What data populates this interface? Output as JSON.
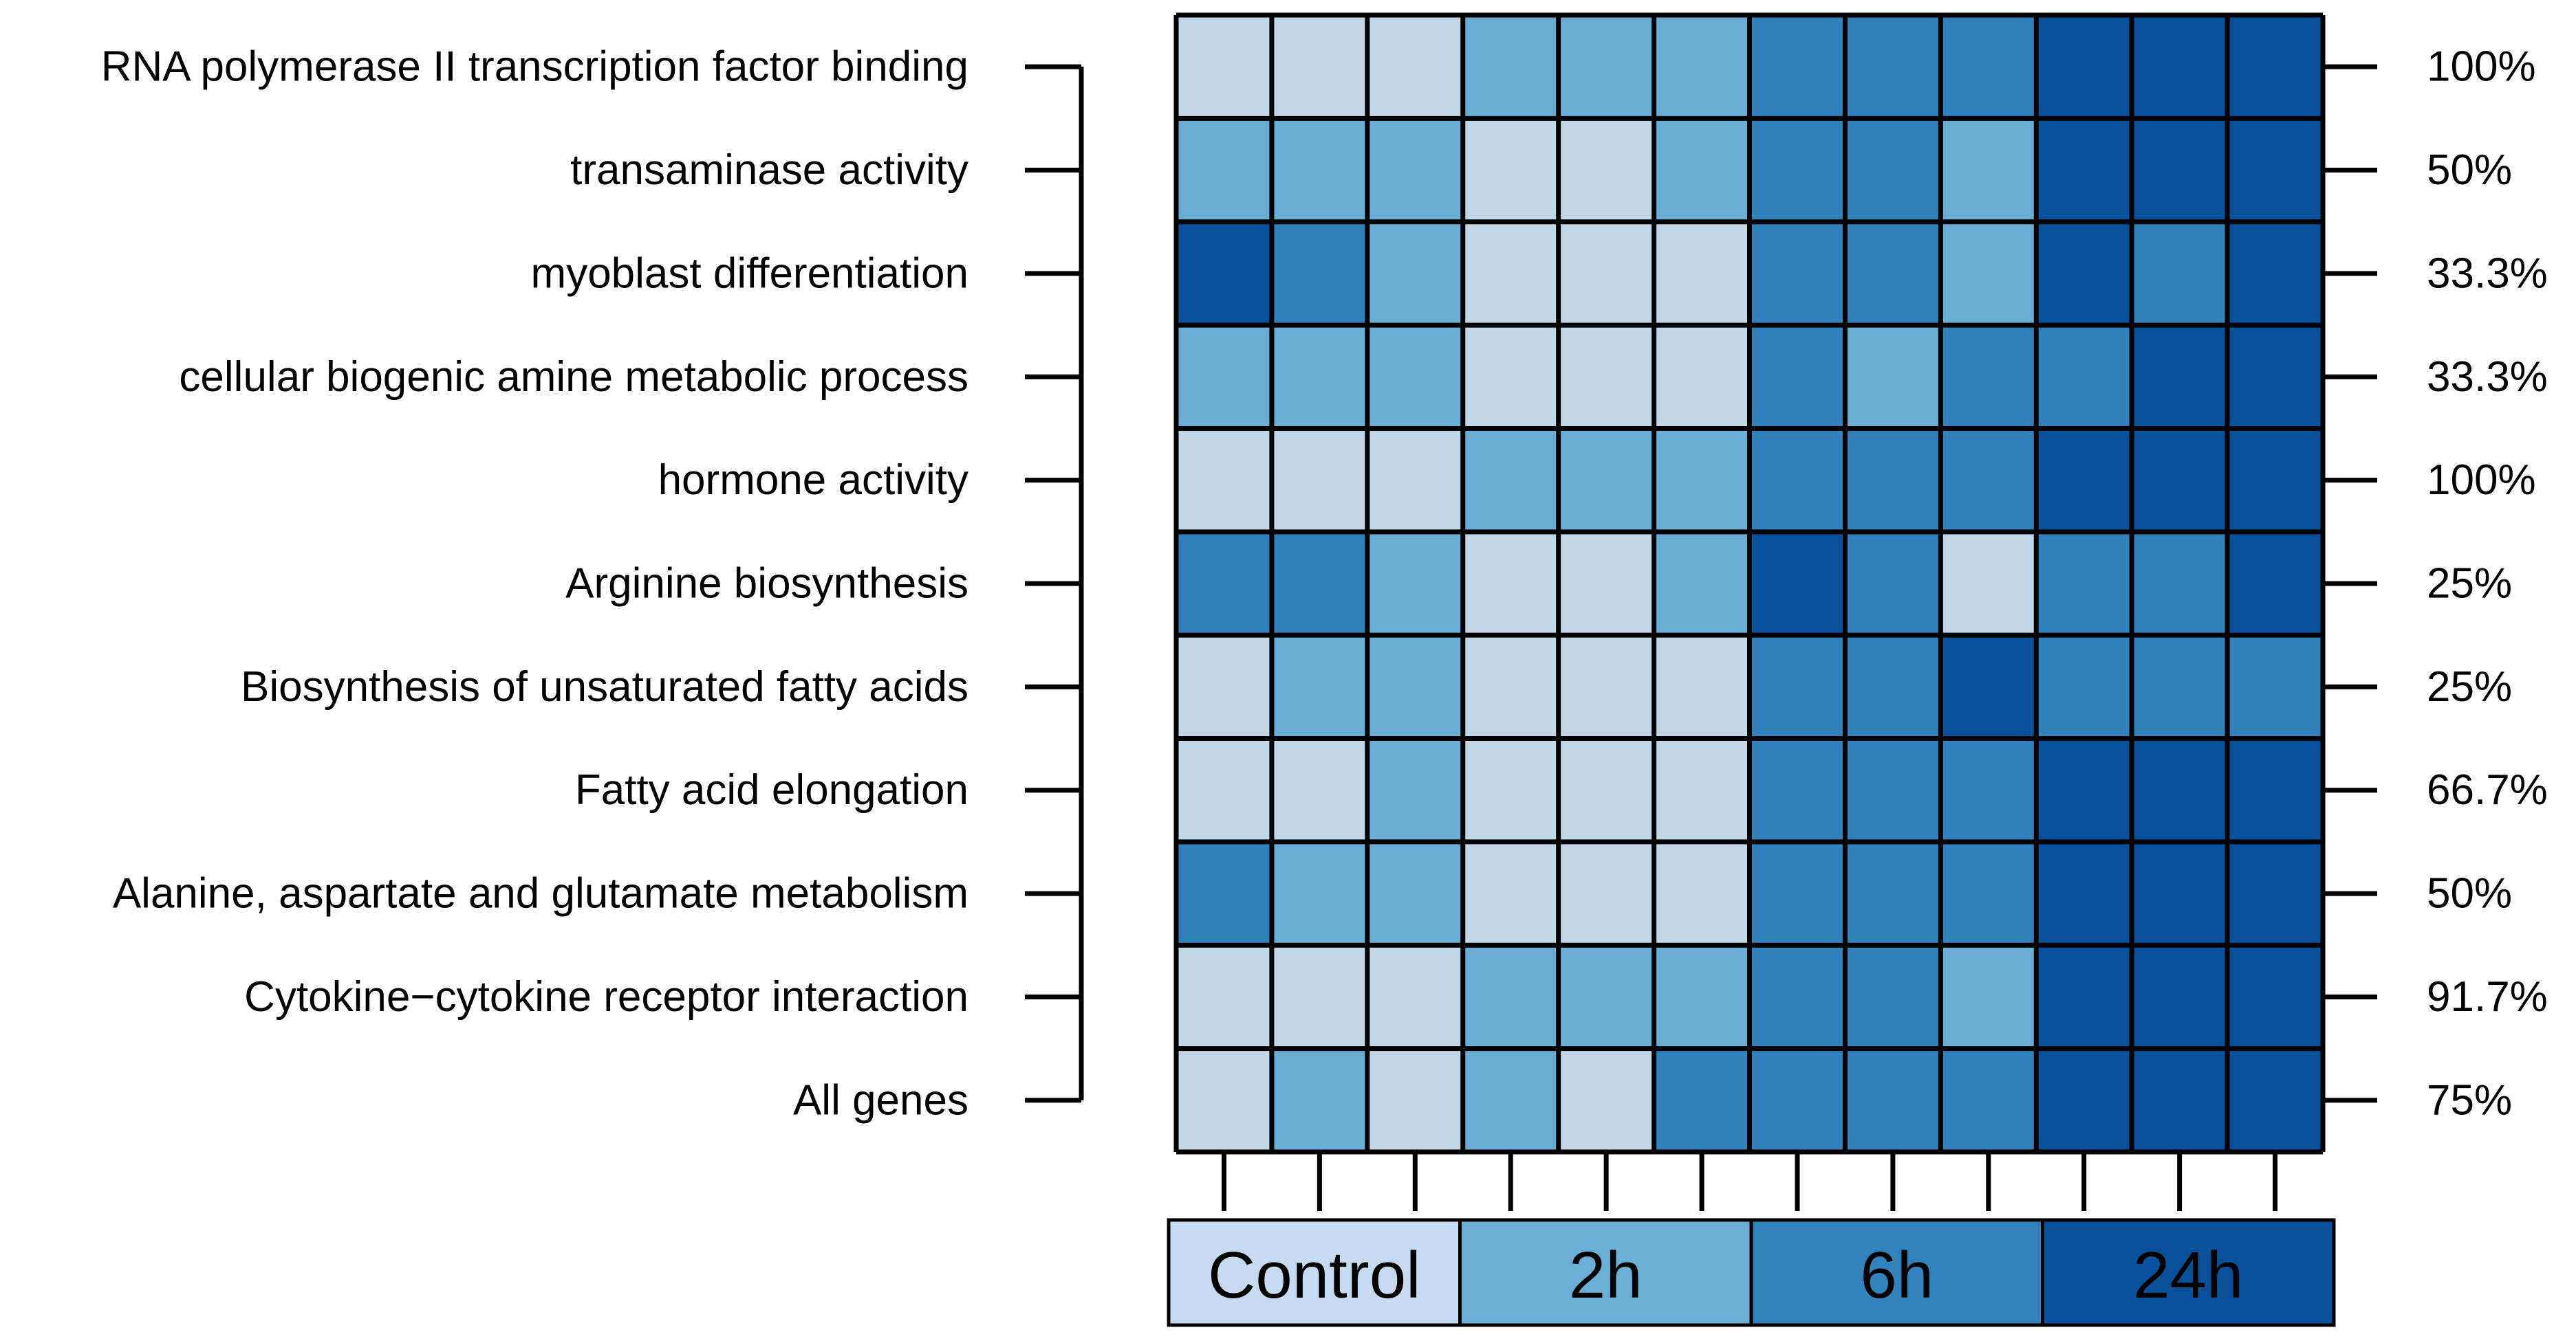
{
  "chart_data": {
    "type": "heatmap",
    "rows": [
      "RNA polymerase II transcription factor binding",
      "transaminase activity",
      "myoblast differentiation",
      "cellular biogenic amine metabolic process",
      "hormone activity",
      "Arginine biosynthesis",
      "Biosynthesis of unsaturated fatty acids",
      "Fatty acid elongation",
      "Alanine, aspartate and glutamate metabolism",
      "Cytokine−cytokine receptor interaction",
      "All genes"
    ],
    "percentages": [
      "100%",
      "50%",
      "33.3%",
      "33.3%",
      "100%",
      "25%",
      "25%",
      "66.7%",
      "50%",
      "91.7%",
      "75%"
    ],
    "groups": [
      {
        "label": "Control",
        "count": 3
      },
      {
        "label": "2h",
        "count": 3
      },
      {
        "label": "6h",
        "count": 3
      },
      {
        "label": "24h",
        "count": 3
      }
    ],
    "levels": [
      [
        1,
        1,
        1,
        2,
        2,
        2,
        3,
        3,
        3,
        4,
        4,
        4
      ],
      [
        2,
        2,
        2,
        1,
        1,
        2,
        3,
        3,
        2,
        4,
        4,
        4
      ],
      [
        4,
        3,
        2,
        1,
        1,
        1,
        3,
        3,
        2,
        4,
        3,
        4
      ],
      [
        2,
        2,
        2,
        1,
        1,
        1,
        3,
        2,
        3,
        3,
        4,
        4
      ],
      [
        1,
        1,
        1,
        2,
        2,
        2,
        3,
        3,
        3,
        4,
        4,
        4
      ],
      [
        3,
        3,
        2,
        1,
        1,
        2,
        4,
        3,
        1,
        3,
        3,
        4
      ],
      [
        1,
        2,
        2,
        1,
        1,
        1,
        3,
        3,
        4,
        3,
        3,
        3
      ],
      [
        1,
        1,
        2,
        1,
        1,
        1,
        3,
        3,
        3,
        4,
        4,
        4
      ],
      [
        3,
        2,
        2,
        1,
        1,
        1,
        3,
        3,
        3,
        4,
        4,
        4
      ],
      [
        1,
        1,
        1,
        2,
        2,
        2,
        3,
        3,
        2,
        4,
        4,
        4
      ],
      [
        1,
        2,
        1,
        2,
        1,
        3,
        3,
        3,
        3,
        4,
        4,
        4
      ]
    ],
    "colors": {
      "1": "#c1d7e6",
      "2": "#6aaed6",
      "3": "#3181bd",
      "4": "#08519c"
    },
    "group_colors": [
      "#c6dbef",
      "#6baed6",
      "#3182bd",
      "#08519c"
    ]
  }
}
